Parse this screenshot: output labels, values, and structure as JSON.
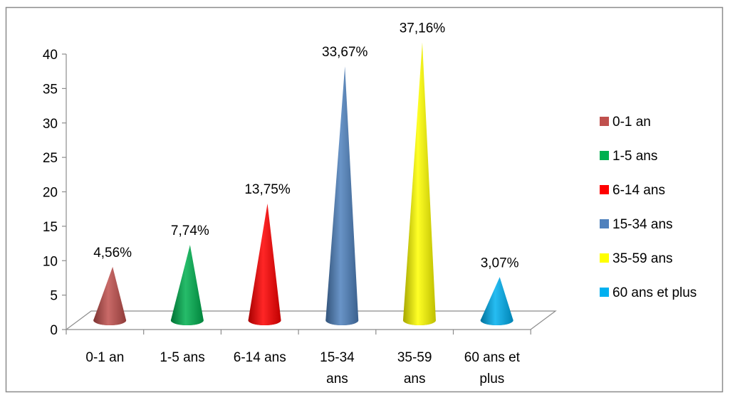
{
  "chart_data": {
    "type": "bar",
    "style": "3d-cone",
    "title": "",
    "xlabel": "",
    "ylabel": "",
    "ylim": [
      0,
      40
    ],
    "yticks": [
      0,
      5,
      10,
      15,
      20,
      25,
      30,
      35,
      40
    ],
    "grid": false,
    "legend_position": "right",
    "categories": [
      "0-1 an",
      "1-5 ans",
      "6-14 ans",
      "15-34 ans",
      "35-59 ans",
      "60 ans et plus"
    ],
    "category_tick_labels": [
      [
        "0-1 an"
      ],
      [
        "1-5 ans"
      ],
      [
        "6-14 ans"
      ],
      [
        "15-34",
        "ans"
      ],
      [
        "35-59",
        "ans"
      ],
      [
        "60 ans et",
        "plus"
      ]
    ],
    "values": [
      4.56,
      7.74,
      13.75,
      33.67,
      37.16,
      3.07
    ],
    "data_labels": [
      "4,56%",
      "7,74%",
      "13,75%",
      "33,67%",
      "37,16%",
      "3,07%"
    ],
    "colors": [
      "#c0504d",
      "#00b050",
      "#ff0000",
      "#4f81bd",
      "#ffff00",
      "#00b0f0"
    ],
    "legend": [
      "0-1 an",
      "1-5 ans",
      "6-14 ans",
      "15-34 ans",
      "35-59 ans",
      "60 ans et plus"
    ]
  }
}
